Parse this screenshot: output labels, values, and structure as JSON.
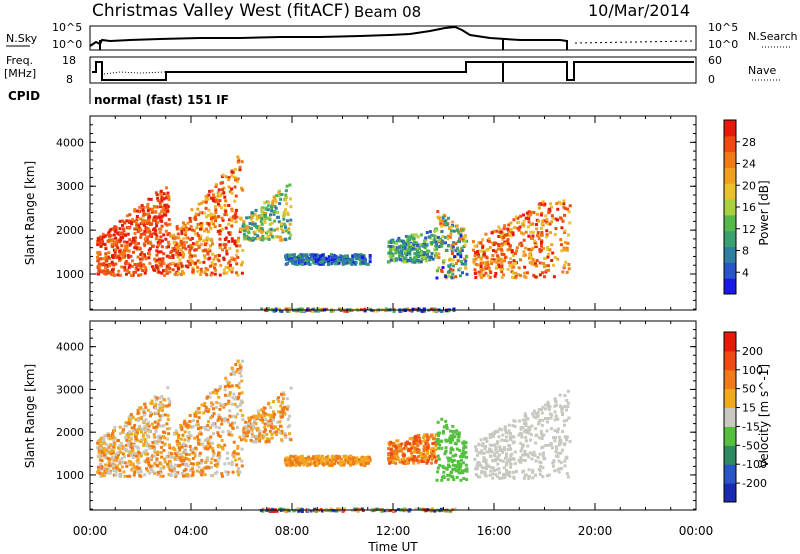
{
  "header": {
    "title": "Christmas Valley West (fitACF)",
    "beam": "Beam 08",
    "date": "10/Mar/2014"
  },
  "labels": {
    "nsky": "N.Sky",
    "nsearch": "N.Search",
    "freq": "Freq.",
    "mhz": "[MHz]",
    "nave": "Nave",
    "cpid": "CPID",
    "cpid_value": "normal (fast) 151 IF",
    "noise_ticks": [
      "10^5",
      "10^0"
    ],
    "freq_ticks": [
      "18",
      "8"
    ],
    "nave_ticks": [
      "60",
      "0"
    ]
  },
  "chart_data": [
    {
      "type": "heatmap",
      "title": "",
      "xlabel": "",
      "ylabel": "Slant Range [km]",
      "xlim": [
        "00:00",
        "24:00"
      ],
      "ylim": [
        180,
        4600
      ],
      "x_ticks": [
        "00:00",
        "04:00",
        "08:00",
        "12:00",
        "16:00",
        "20:00",
        "00:00"
      ],
      "y_ticks": [
        1000,
        2000,
        3000,
        4000
      ],
      "colorbar": {
        "label": "Power [dB]",
        "ticks": [
          "4",
          "8",
          "12",
          "16",
          "20",
          "24",
          "28"
        ],
        "colors": [
          "#1a1ae6",
          "#2a55c8",
          "#2e7fa0",
          "#3aa070",
          "#55b84a",
          "#a8d040",
          "#e8c030",
          "#f0a020",
          "#f07a18",
          "#ee4a12",
          "#e61a0a"
        ]
      }
    },
    {
      "type": "heatmap",
      "title": "",
      "xlabel": "Time UT",
      "ylabel": "Slant Range [km]",
      "xlim": [
        "00:00",
        "24:00"
      ],
      "ylim": [
        180,
        4600
      ],
      "x_ticks": [
        "00:00",
        "04:00",
        "08:00",
        "12:00",
        "16:00",
        "20:00",
        "00:00"
      ],
      "y_ticks": [
        1000,
        2000,
        3000,
        4000
      ],
      "colorbar": {
        "label": "Velocity [m s^-1]",
        "ticks": [
          "200",
          "100",
          "50",
          "15",
          "-15",
          "-50",
          "-100",
          "-200"
        ],
        "colors": [
          "#1a2ab0",
          "#2a55c8",
          "#2e8a60",
          "#55c040",
          "#c8c8c0",
          "#f0a820",
          "#f07a18",
          "#ee4a12",
          "#e61a0a"
        ]
      }
    }
  ]
}
